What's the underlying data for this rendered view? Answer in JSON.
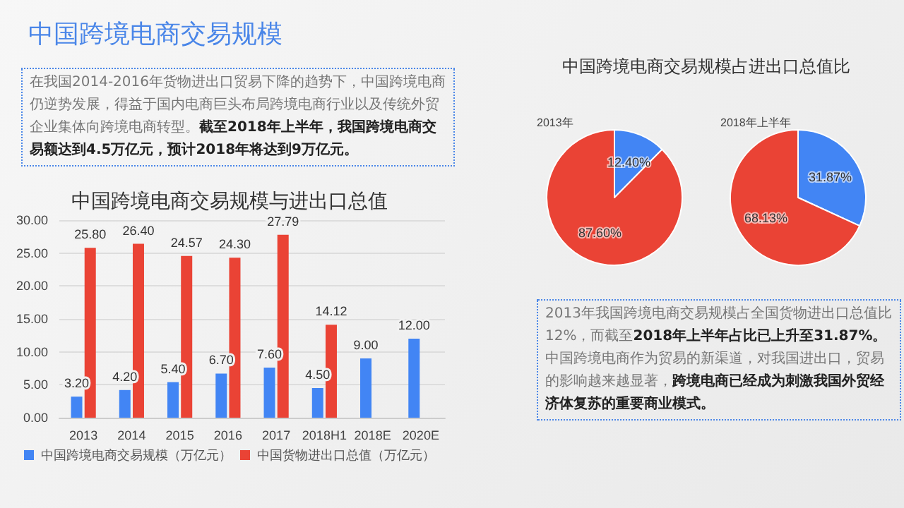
{
  "chart_data": [
    {
      "type": "other",
      "title": "中国跨境电商交易规模",
      "annotations": [
        "在我国2014-2016年货物进出口贸易下降的趋势下，中国跨境电商仍逆势发展，得益于国内电商巨头布局跨境电商行业以及传统外贸企业集体向跨境电商转型。",
        "截至2018年上半年，我国跨境电商交易额达到4.5万亿元，预计2018年将达到9万亿元。"
      ]
    },
    {
      "type": "bar",
      "title": "中国跨境电商交易规模与进出口总值",
      "categories": [
        "2013",
        "2014",
        "2015",
        "2016",
        "2017",
        "2018H1",
        "2018E",
        "2020E"
      ],
      "series": [
        {
          "name": "中国跨境电商交易规模（万亿元）",
          "color": "#4285f4",
          "values": [
            3.2,
            4.2,
            5.4,
            6.7,
            7.6,
            4.5,
            9,
            12
          ],
          "value_labels": [
            "3.20",
            "4.20",
            "5.40",
            "6.70",
            "7.60",
            "4.50",
            "9.00",
            "12.00"
          ]
        },
        {
          "name": "中国货物进出口总值（万亿元）",
          "color": "#ea4335",
          "values": [
            25.8,
            26.4,
            24.57,
            24.3,
            27.79,
            14.12,
            null,
            null
          ],
          "value_labels": [
            "25.80",
            "26.40",
            "24.57",
            "24.30",
            "27.79",
            "14.12",
            null,
            null
          ]
        }
      ],
      "ylim": [
        0,
        30
      ],
      "yticks": [
        {
          "value": 0,
          "label": "0.00"
        },
        {
          "value": 5,
          "label": "5.00"
        },
        {
          "value": 10,
          "label": "10.00"
        },
        {
          "value": 15,
          "label": "15.00"
        },
        {
          "value": 20,
          "label": "20.00"
        },
        {
          "value": 25,
          "label": "25.00"
        },
        {
          "value": 30,
          "label": "30.00"
        }
      ],
      "grid": "y",
      "legend": "bottom"
    },
    {
      "type": "pie",
      "title": "中国跨境电商交易规模占进出口总值比",
      "subtitle": "2013年",
      "categories": [
        null,
        null
      ],
      "values": [
        12.4,
        87.6
      ],
      "colors": [
        "#4285f4",
        "#ea4335"
      ],
      "value_labels": [
        "12.40%",
        "87.60%"
      ]
    },
    {
      "type": "pie",
      "subtitle": "2018年上半年",
      "categories": [
        null,
        null
      ],
      "values": [
        31.87,
        68.13
      ],
      "colors": [
        "#4285f4",
        "#ea4335"
      ],
      "value_labels": [
        "31.87%",
        "68.13%"
      ]
    },
    {
      "type": "other",
      "annotations": [
        "2013年我国跨境电商交易规模占全国货物进出口总值比12%，而截至",
        "2018年上半年占比已上升至31.87%。",
        "中国跨境电商作为贸易的新渠道，对我国进出口，贸易的影响越来越显著，",
        "跨境电商已经成为刺激我国外贸经济体复苏的重要商业模式。"
      ]
    }
  ]
}
